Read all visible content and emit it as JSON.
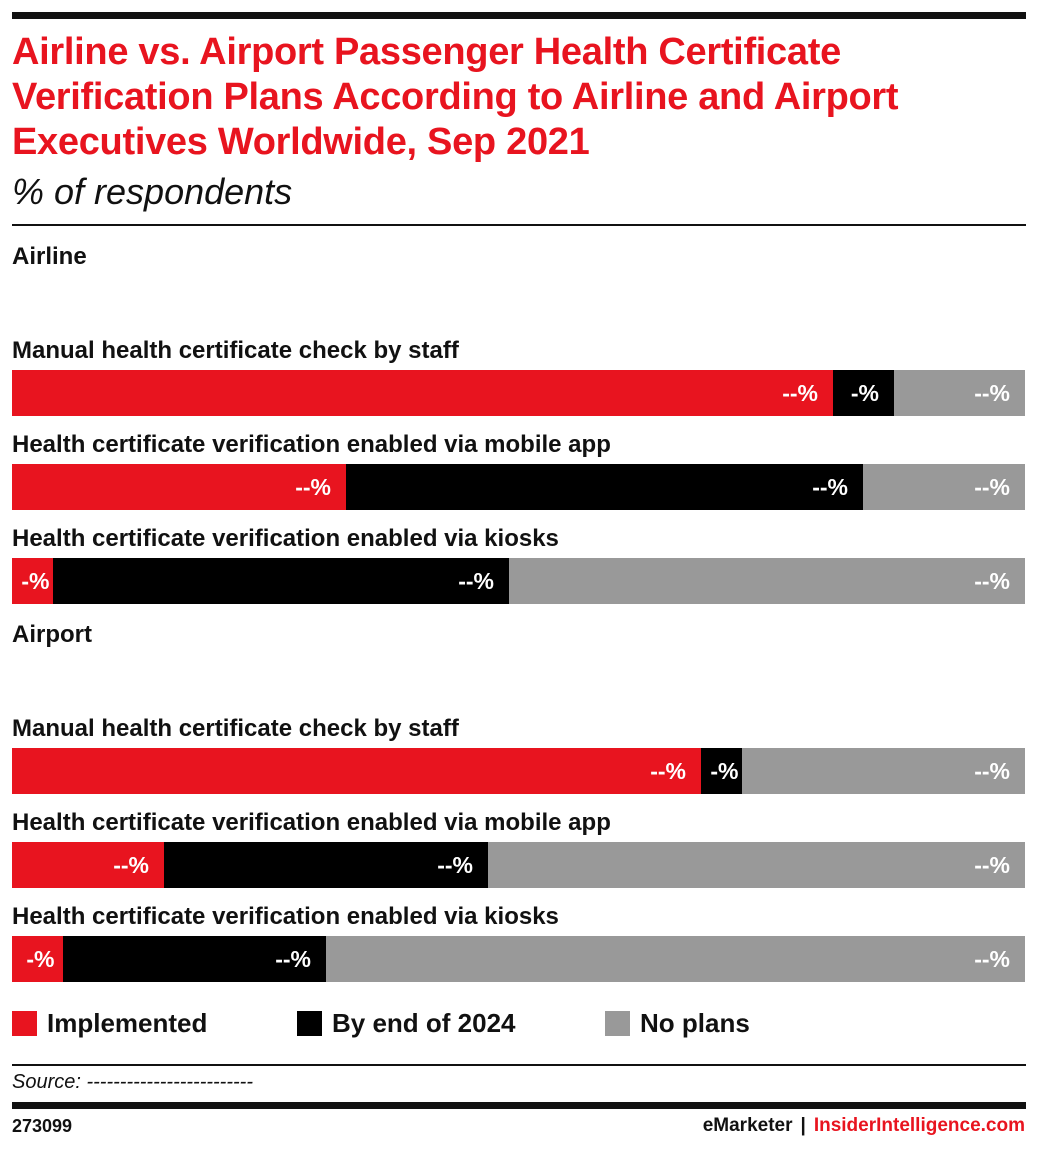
{
  "header": {
    "title": "Airline vs. Airport Passenger Health Certificate Verification Plans According to Airline and Airport Executives Worldwide, Sep 2021",
    "subtitle": "% of respondents"
  },
  "colors": {
    "implemented": "#e8141f",
    "by_end_2024": "#000000",
    "no_plans": "#999999"
  },
  "chart_data": {
    "type": "bar",
    "orientation": "horizontal",
    "stacked": true,
    "normalized_to": 100,
    "title": "Airline vs. Airport Passenger Health Certificate Verification Plans According to Airline and Airport Executives Worldwide, Sep 2021",
    "subtitle": "% of respondents",
    "legend_position": "bottom",
    "legend": [
      "Implemented",
      "By end of 2024",
      "No plans"
    ],
    "groups": [
      {
        "name": "Airline",
        "rows": [
          {
            "label": "Manual health certificate check by staff",
            "values": [
              81,
              6,
              13
            ],
            "value_labels": [
              "--%",
              "-%",
              "--%"
            ]
          },
          {
            "label": "Health certificate verification enabled via mobile app",
            "values": [
              33,
              51,
              16
            ],
            "value_labels": [
              "--%",
              "--%",
              "--%"
            ]
          },
          {
            "label": "Health certificate verification enabled via kiosks",
            "values": [
              4,
              45,
              51
            ],
            "value_labels": [
              "-%",
              "--%",
              "--%"
            ]
          }
        ]
      },
      {
        "name": "Airport",
        "rows": [
          {
            "label": "Manual health certificate check by staff",
            "values": [
              68,
              4,
              28
            ],
            "value_labels": [
              "--%",
              "-%",
              "--%"
            ]
          },
          {
            "label": "Health certificate verification enabled via mobile app",
            "values": [
              15,
              32,
              53
            ],
            "value_labels": [
              "--%",
              "--%",
              "--%"
            ]
          },
          {
            "label": "Health certificate verification enabled via kiosks",
            "values": [
              5,
              26,
              69
            ],
            "value_labels": [
              "-%",
              "--%",
              "--%"
            ]
          }
        ]
      }
    ]
  },
  "footer": {
    "source": "Source: -------------------------",
    "chart_id": "273099",
    "brand_emarketer": "eMarketer",
    "brand_separator": "|",
    "brand_insider": "InsiderIntelligence.com"
  }
}
